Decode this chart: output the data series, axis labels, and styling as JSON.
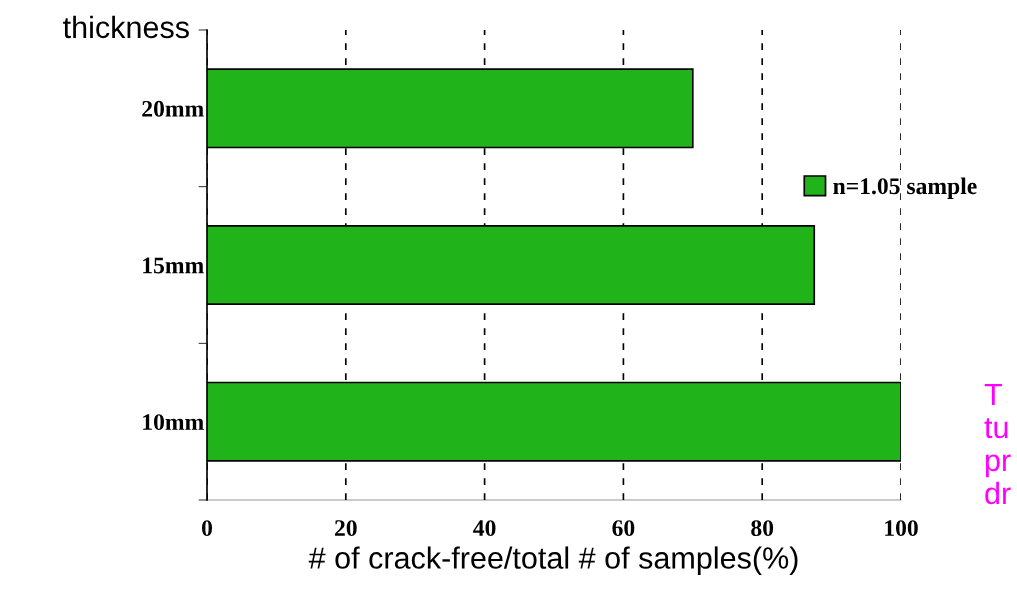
{
  "chart_data": {
    "type": "bar",
    "orientation": "horizontal",
    "xlabel": "# of crack-free/total # of samples(%)",
    "ylabel": "thickness",
    "categories": [
      "20mm",
      "15mm",
      "10mm"
    ],
    "series": [
      {
        "name": "n=1.05 sample",
        "color": "#20b41a",
        "values": [
          70,
          87.5,
          100
        ]
      }
    ],
    "xlim": [
      0,
      100
    ],
    "xticks": [
      0,
      20,
      40,
      60,
      80,
      100
    ],
    "grid": "x",
    "legend": "right",
    "annotations": [
      "T",
      "tu",
      "pr",
      "dr"
    ]
  }
}
